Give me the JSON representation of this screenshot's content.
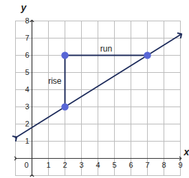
{
  "chart_data": {
    "type": "line",
    "x_label": "x",
    "y_label": "y",
    "xlim": [
      -1,
      9
    ],
    "ylim": [
      -1,
      8
    ],
    "xticks": [
      0,
      1,
      2,
      3,
      4,
      5,
      6,
      7,
      8,
      9
    ],
    "yticks": [
      1,
      2,
      3,
      4,
      5,
      6,
      7,
      8
    ],
    "grid": true,
    "line": {
      "x": [
        -1,
        9
      ],
      "y": [
        1.2,
        7.2
      ],
      "color": "#1f2d5c"
    },
    "points": {
      "x": [
        2,
        2,
        7
      ],
      "y": [
        3,
        6,
        6
      ],
      "color": "#5866d6"
    },
    "segments": [
      {
        "label": "rise",
        "x": [
          2,
          2
        ],
        "y": [
          3,
          6
        ]
      },
      {
        "label": "run",
        "x": [
          2,
          7
        ],
        "y": [
          6,
          6
        ]
      }
    ]
  }
}
